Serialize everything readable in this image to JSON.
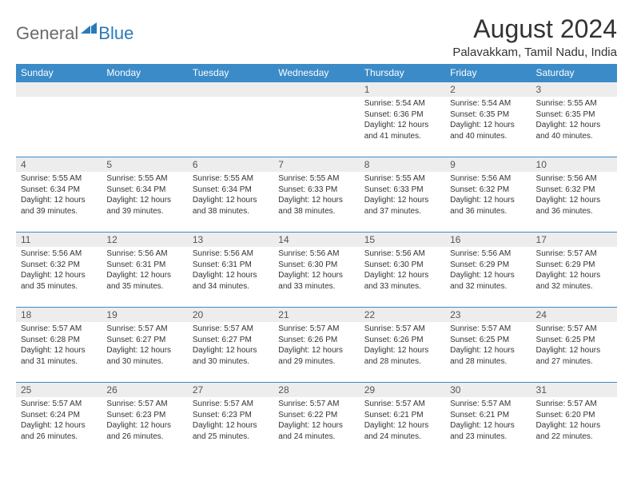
{
  "brand": {
    "general": "General",
    "blue": "Blue"
  },
  "header": {
    "month_title": "August 2024",
    "location": "Palavakkam, Tamil Nadu, India"
  },
  "style": {
    "header_bg": "#3b8bc8",
    "header_text": "#ffffff",
    "daynum_bg": "#ededed",
    "cell_border": "#3b8bc8",
    "body_text": "#333333",
    "logo_gray": "#6a6a6a",
    "logo_blue": "#2a7ab8"
  },
  "weekdays": [
    "Sunday",
    "Monday",
    "Tuesday",
    "Wednesday",
    "Thursday",
    "Friday",
    "Saturday"
  ],
  "weeks": [
    [
      {
        "blank": true
      },
      {
        "blank": true
      },
      {
        "blank": true
      },
      {
        "blank": true
      },
      {
        "day": "1",
        "sunrise": "Sunrise: 5:54 AM",
        "sunset": "Sunset: 6:36 PM",
        "day1": "Daylight: 12 hours",
        "day2": "and 41 minutes."
      },
      {
        "day": "2",
        "sunrise": "Sunrise: 5:54 AM",
        "sunset": "Sunset: 6:35 PM",
        "day1": "Daylight: 12 hours",
        "day2": "and 40 minutes."
      },
      {
        "day": "3",
        "sunrise": "Sunrise: 5:55 AM",
        "sunset": "Sunset: 6:35 PM",
        "day1": "Daylight: 12 hours",
        "day2": "and 40 minutes."
      }
    ],
    [
      {
        "day": "4",
        "sunrise": "Sunrise: 5:55 AM",
        "sunset": "Sunset: 6:34 PM",
        "day1": "Daylight: 12 hours",
        "day2": "and 39 minutes."
      },
      {
        "day": "5",
        "sunrise": "Sunrise: 5:55 AM",
        "sunset": "Sunset: 6:34 PM",
        "day1": "Daylight: 12 hours",
        "day2": "and 39 minutes."
      },
      {
        "day": "6",
        "sunrise": "Sunrise: 5:55 AM",
        "sunset": "Sunset: 6:34 PM",
        "day1": "Daylight: 12 hours",
        "day2": "and 38 minutes."
      },
      {
        "day": "7",
        "sunrise": "Sunrise: 5:55 AM",
        "sunset": "Sunset: 6:33 PM",
        "day1": "Daylight: 12 hours",
        "day2": "and 38 minutes."
      },
      {
        "day": "8",
        "sunrise": "Sunrise: 5:55 AM",
        "sunset": "Sunset: 6:33 PM",
        "day1": "Daylight: 12 hours",
        "day2": "and 37 minutes."
      },
      {
        "day": "9",
        "sunrise": "Sunrise: 5:56 AM",
        "sunset": "Sunset: 6:32 PM",
        "day1": "Daylight: 12 hours",
        "day2": "and 36 minutes."
      },
      {
        "day": "10",
        "sunrise": "Sunrise: 5:56 AM",
        "sunset": "Sunset: 6:32 PM",
        "day1": "Daylight: 12 hours",
        "day2": "and 36 minutes."
      }
    ],
    [
      {
        "day": "11",
        "sunrise": "Sunrise: 5:56 AM",
        "sunset": "Sunset: 6:32 PM",
        "day1": "Daylight: 12 hours",
        "day2": "and 35 minutes."
      },
      {
        "day": "12",
        "sunrise": "Sunrise: 5:56 AM",
        "sunset": "Sunset: 6:31 PM",
        "day1": "Daylight: 12 hours",
        "day2": "and 35 minutes."
      },
      {
        "day": "13",
        "sunrise": "Sunrise: 5:56 AM",
        "sunset": "Sunset: 6:31 PM",
        "day1": "Daylight: 12 hours",
        "day2": "and 34 minutes."
      },
      {
        "day": "14",
        "sunrise": "Sunrise: 5:56 AM",
        "sunset": "Sunset: 6:30 PM",
        "day1": "Daylight: 12 hours",
        "day2": "and 33 minutes."
      },
      {
        "day": "15",
        "sunrise": "Sunrise: 5:56 AM",
        "sunset": "Sunset: 6:30 PM",
        "day1": "Daylight: 12 hours",
        "day2": "and 33 minutes."
      },
      {
        "day": "16",
        "sunrise": "Sunrise: 5:56 AM",
        "sunset": "Sunset: 6:29 PM",
        "day1": "Daylight: 12 hours",
        "day2": "and 32 minutes."
      },
      {
        "day": "17",
        "sunrise": "Sunrise: 5:57 AM",
        "sunset": "Sunset: 6:29 PM",
        "day1": "Daylight: 12 hours",
        "day2": "and 32 minutes."
      }
    ],
    [
      {
        "day": "18",
        "sunrise": "Sunrise: 5:57 AM",
        "sunset": "Sunset: 6:28 PM",
        "day1": "Daylight: 12 hours",
        "day2": "and 31 minutes."
      },
      {
        "day": "19",
        "sunrise": "Sunrise: 5:57 AM",
        "sunset": "Sunset: 6:27 PM",
        "day1": "Daylight: 12 hours",
        "day2": "and 30 minutes."
      },
      {
        "day": "20",
        "sunrise": "Sunrise: 5:57 AM",
        "sunset": "Sunset: 6:27 PM",
        "day1": "Daylight: 12 hours",
        "day2": "and 30 minutes."
      },
      {
        "day": "21",
        "sunrise": "Sunrise: 5:57 AM",
        "sunset": "Sunset: 6:26 PM",
        "day1": "Daylight: 12 hours",
        "day2": "and 29 minutes."
      },
      {
        "day": "22",
        "sunrise": "Sunrise: 5:57 AM",
        "sunset": "Sunset: 6:26 PM",
        "day1": "Daylight: 12 hours",
        "day2": "and 28 minutes."
      },
      {
        "day": "23",
        "sunrise": "Sunrise: 5:57 AM",
        "sunset": "Sunset: 6:25 PM",
        "day1": "Daylight: 12 hours",
        "day2": "and 28 minutes."
      },
      {
        "day": "24",
        "sunrise": "Sunrise: 5:57 AM",
        "sunset": "Sunset: 6:25 PM",
        "day1": "Daylight: 12 hours",
        "day2": "and 27 minutes."
      }
    ],
    [
      {
        "day": "25",
        "sunrise": "Sunrise: 5:57 AM",
        "sunset": "Sunset: 6:24 PM",
        "day1": "Daylight: 12 hours",
        "day2": "and 26 minutes."
      },
      {
        "day": "26",
        "sunrise": "Sunrise: 5:57 AM",
        "sunset": "Sunset: 6:23 PM",
        "day1": "Daylight: 12 hours",
        "day2": "and 26 minutes."
      },
      {
        "day": "27",
        "sunrise": "Sunrise: 5:57 AM",
        "sunset": "Sunset: 6:23 PM",
        "day1": "Daylight: 12 hours",
        "day2": "and 25 minutes."
      },
      {
        "day": "28",
        "sunrise": "Sunrise: 5:57 AM",
        "sunset": "Sunset: 6:22 PM",
        "day1": "Daylight: 12 hours",
        "day2": "and 24 minutes."
      },
      {
        "day": "29",
        "sunrise": "Sunrise: 5:57 AM",
        "sunset": "Sunset: 6:21 PM",
        "day1": "Daylight: 12 hours",
        "day2": "and 24 minutes."
      },
      {
        "day": "30",
        "sunrise": "Sunrise: 5:57 AM",
        "sunset": "Sunset: 6:21 PM",
        "day1": "Daylight: 12 hours",
        "day2": "and 23 minutes."
      },
      {
        "day": "31",
        "sunrise": "Sunrise: 5:57 AM",
        "sunset": "Sunset: 6:20 PM",
        "day1": "Daylight: 12 hours",
        "day2": "and 22 minutes."
      }
    ]
  ]
}
